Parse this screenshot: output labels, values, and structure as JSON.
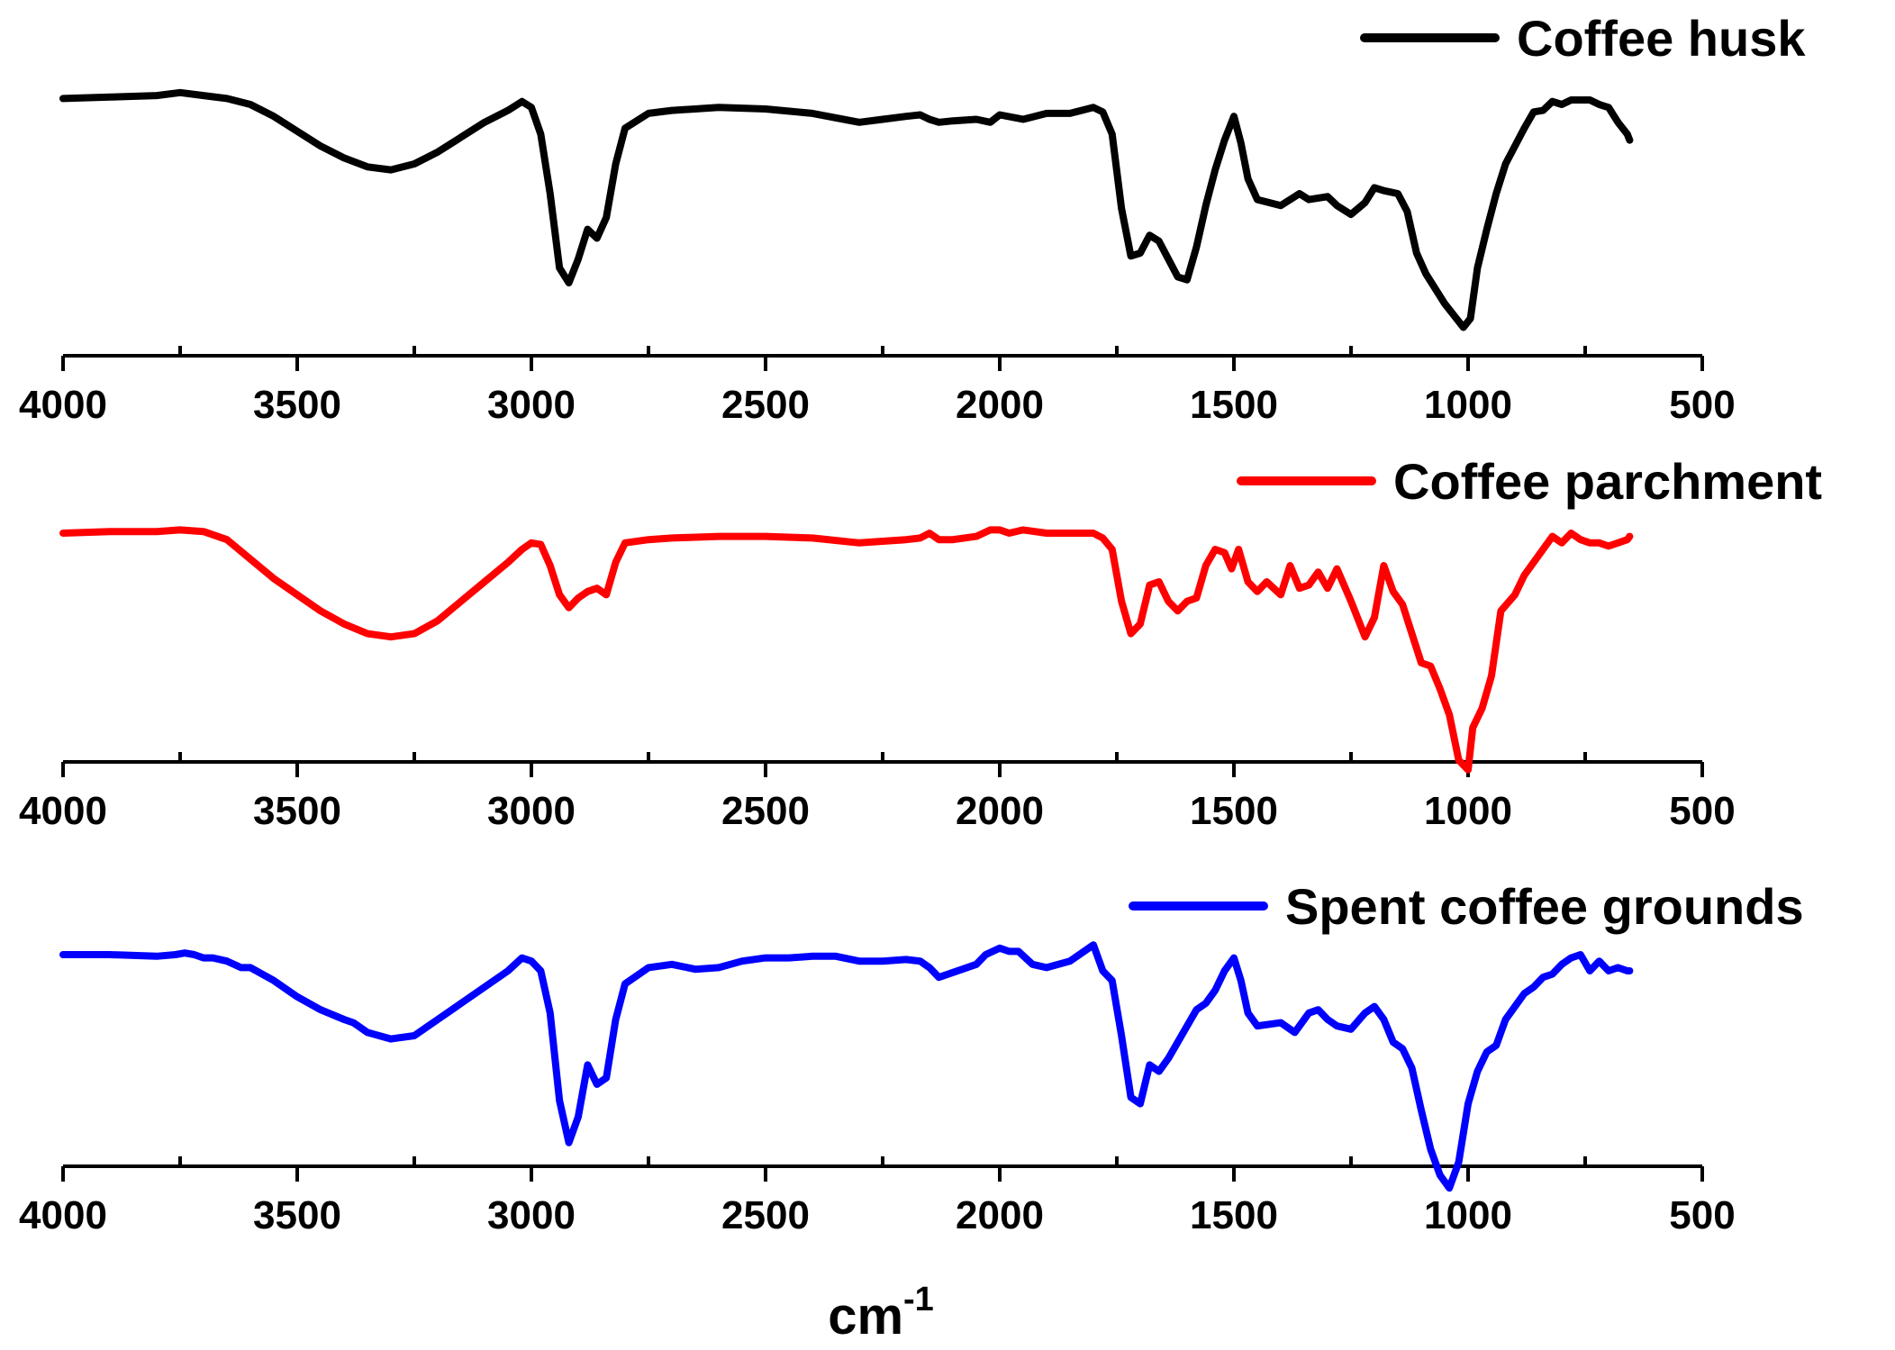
{
  "chart_data": [
    {
      "type": "line",
      "title": "",
      "xlabel": "",
      "ylabel": "",
      "xlim": [
        4000,
        500
      ],
      "xticks": [
        4000,
        3500,
        3000,
        2500,
        2000,
        1500,
        1000,
        500
      ],
      "xtick_labels": [
        "4000",
        "3500",
        "3000",
        "2500",
        "2000",
        "1500",
        "1000",
        "500"
      ],
      "y_axis": "none",
      "grid": false,
      "legend_position": "top-right",
      "series": [
        {
          "name": "Coffee husk",
          "color": "#000000",
          "x": [
            4000,
            3900,
            3800,
            3750,
            3700,
            3650,
            3600,
            3550,
            3500,
            3450,
            3400,
            3350,
            3300,
            3250,
            3200,
            3150,
            3100,
            3050,
            3020,
            3000,
            2980,
            2960,
            2940,
            2920,
            2900,
            2880,
            2860,
            2840,
            2820,
            2800,
            2750,
            2700,
            2600,
            2500,
            2400,
            2300,
            2250,
            2200,
            2170,
            2150,
            2130,
            2100,
            2050,
            2020,
            2000,
            1950,
            1900,
            1850,
            1800,
            1780,
            1760,
            1740,
            1720,
            1700,
            1680,
            1660,
            1640,
            1620,
            1600,
            1580,
            1560,
            1540,
            1520,
            1500,
            1485,
            1470,
            1450,
            1400,
            1360,
            1340,
            1300,
            1280,
            1250,
            1220,
            1200,
            1180,
            1150,
            1130,
            1110,
            1090,
            1070,
            1050,
            1030,
            1010,
            995,
            980,
            960,
            940,
            920,
            900,
            880,
            860,
            840,
            820,
            800,
            780,
            760,
            740,
            720,
            700,
            680,
            660,
            655
          ],
          "y": [
            2,
            2.5,
            3,
            4,
            3,
            2,
            0,
            -4,
            -9,
            -14,
            -18,
            -21,
            -22,
            -20,
            -16,
            -11,
            -6,
            -2,
            1,
            -1,
            -10,
            -30,
            -55,
            -60,
            -52,
            -42,
            -45,
            -38,
            -20,
            -8,
            -3,
            -2,
            -1,
            -1.5,
            -3,
            -6,
            -5,
            -4,
            -3.5,
            -5,
            -6,
            -5.5,
            -5,
            -6,
            -3.5,
            -5,
            -3,
            -3,
            -1,
            -2.5,
            -10,
            -35,
            -51,
            -50,
            -44,
            -46,
            -52,
            -58,
            -59,
            -48,
            -34,
            -22,
            -12,
            -4,
            -13,
            -25,
            -32,
            -34,
            -30,
            -32,
            -31,
            -34,
            -37,
            -33,
            -28,
            -29,
            -30,
            -36,
            -50,
            -57,
            -62,
            -67,
            -71,
            -75,
            -72,
            -55,
            -42,
            -30,
            -20,
            -14,
            -8,
            -2.5,
            -2,
            1,
            0,
            1.5,
            1.5,
            1.5,
            0,
            -1,
            -6,
            -10,
            -12
          ]
        },
        {
          "name": "Coffee parchment",
          "color": "#ff0000",
          "x": [
            4000,
            3900,
            3800,
            3750,
            3700,
            3650,
            3600,
            3550,
            3500,
            3450,
            3400,
            3350,
            3300,
            3250,
            3200,
            3150,
            3100,
            3050,
            3020,
            3000,
            2980,
            2960,
            2940,
            2920,
            2900,
            2880,
            2860,
            2840,
            2820,
            2800,
            2750,
            2700,
            2600,
            2500,
            2400,
            2300,
            2250,
            2200,
            2170,
            2150,
            2130,
            2100,
            2050,
            2020,
            2000,
            1980,
            1950,
            1900,
            1850,
            1800,
            1780,
            1760,
            1740,
            1720,
            1700,
            1680,
            1660,
            1640,
            1620,
            1600,
            1580,
            1560,
            1540,
            1520,
            1505,
            1490,
            1470,
            1450,
            1430,
            1400,
            1380,
            1360,
            1340,
            1320,
            1300,
            1280,
            1250,
            1220,
            1200,
            1180,
            1160,
            1140,
            1120,
            1100,
            1080,
            1060,
            1040,
            1020,
            1000,
            990,
            970,
            950,
            930,
            900,
            880,
            850,
            820,
            800,
            780,
            760,
            740,
            720,
            700,
            680,
            660,
            655
          ],
          "y": [
            0,
            0.5,
            0.5,
            1,
            0.5,
            -2,
            -8,
            -14,
            -19,
            -24,
            -28,
            -31,
            -32,
            -31,
            -27,
            -21,
            -15,
            -9,
            -5,
            -3,
            -3.5,
            -10,
            -19,
            -23,
            -20,
            -18,
            -17,
            -19,
            -9,
            -3,
            -2,
            -1.5,
            -1,
            -1,
            -1.5,
            -3,
            -2.5,
            -2,
            -1.5,
            0,
            -2,
            -2,
            -1,
            1,
            1,
            0,
            1,
            0,
            0,
            0,
            -1.5,
            -5,
            -21,
            -31,
            -28,
            -16,
            -15,
            -21,
            -24,
            -21,
            -20,
            -10,
            -5,
            -6,
            -11,
            -5,
            -15,
            -18,
            -15,
            -19,
            -10,
            -17,
            -16,
            -12,
            -17,
            -11,
            -21,
            -32,
            -26,
            -10,
            -18,
            -22,
            -31,
            -40,
            -41,
            -48,
            -56,
            -70,
            -73,
            -60,
            -54,
            -44,
            -24,
            -19,
            -13,
            -7,
            -1,
            -3,
            0,
            -2,
            -3,
            -3,
            -4,
            -3,
            -2,
            -1
          ]
        },
        {
          "name": "Spent coffee grounds",
          "color": "#0000ff",
          "x": [
            4000,
            3900,
            3800,
            3760,
            3740,
            3720,
            3700,
            3680,
            3650,
            3620,
            3600,
            3550,
            3500,
            3450,
            3400,
            3380,
            3350,
            3300,
            3250,
            3220,
            3200,
            3150,
            3100,
            3050,
            3020,
            3000,
            2980,
            2960,
            2940,
            2920,
            2900,
            2880,
            2860,
            2840,
            2820,
            2800,
            2750,
            2700,
            2650,
            2600,
            2550,
            2500,
            2450,
            2400,
            2350,
            2300,
            2250,
            2200,
            2170,
            2150,
            2130,
            2100,
            2050,
            2030,
            2000,
            1980,
            1960,
            1930,
            1900,
            1850,
            1800,
            1780,
            1760,
            1740,
            1720,
            1700,
            1680,
            1660,
            1640,
            1620,
            1600,
            1580,
            1560,
            1540,
            1520,
            1500,
            1485,
            1470,
            1450,
            1400,
            1370,
            1340,
            1320,
            1300,
            1280,
            1250,
            1220,
            1200,
            1180,
            1160,
            1140,
            1120,
            1100,
            1080,
            1060,
            1040,
            1020,
            1000,
            980,
            960,
            940,
            920,
            900,
            880,
            860,
            840,
            820,
            800,
            780,
            760,
            740,
            720,
            700,
            680,
            660,
            655
          ],
          "y": [
            0,
            0,
            -0.5,
            0,
            0.5,
            0,
            -1,
            -1,
            -2,
            -4,
            -4,
            -8,
            -13,
            -17,
            -20,
            -21,
            -24,
            -26,
            -25,
            -22,
            -20,
            -15,
            -10,
            -5,
            -1,
            -2,
            -5,
            -18,
            -45,
            -58,
            -50,
            -34,
            -40,
            -38,
            -20,
            -9,
            -4,
            -3,
            -4.5,
            -4,
            -2,
            -1,
            -1,
            -0.5,
            -0.5,
            -2,
            -2,
            -1.5,
            -2,
            -4,
            -7,
            -5.5,
            -3,
            0,
            2,
            1,
            1,
            -3,
            -4,
            -2,
            3,
            -5,
            -8,
            -25,
            -44,
            -46,
            -34,
            -36,
            -32,
            -27,
            -22,
            -17,
            -15,
            -11,
            -5,
            -1,
            -8,
            -18,
            -22,
            -21,
            -24,
            -18,
            -17,
            -20,
            -22,
            -23,
            -18,
            -16,
            -20,
            -27,
            -29,
            -35,
            -48,
            -60,
            -68,
            -72,
            -64,
            -46,
            -36,
            -30,
            -28,
            -20,
            -16,
            -12,
            -10,
            -7,
            -6,
            -3,
            -1,
            0,
            -5,
            -2,
            -5,
            -4,
            -5,
            -5
          ]
        }
      ]
    }
  ],
  "legend": {
    "items": [
      "Coffee husk",
      "Coffee parchment",
      "Spent coffee grounds"
    ]
  },
  "axis_title": {
    "main": "cm",
    "superscript": "-1"
  }
}
